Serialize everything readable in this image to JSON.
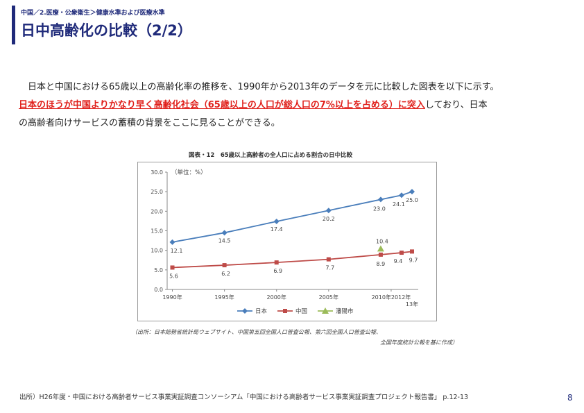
{
  "header": {
    "breadcrumb": "中国／2.医療・公衆衛生＞健康水準および医療水準",
    "title": "日中高齢化の比較（2/2）"
  },
  "body": {
    "line1": "日本と中国における65歳以上の高齢化率の推移を、1990年から2013年のデータを元に比較した図表を以下に示す。",
    "highlight": "日本のほうが中国よりかなり早く高齢化社会（65歳以上の人口が総人口の7%以上を占める）に突入",
    "line2_tail": "しており、日本",
    "line3": "の高齢者向けサービスの蓄積の背景をここに見ることができる。"
  },
  "chart_title": "図表・12　65歳以上高齢者の全人口に占める割合の日中比較",
  "chart_source": {
    "line1": "（出所：日本総務省統計局ウェブサイト、中国第五回全国人口普査公報、第六回全国人口普査公報、",
    "line2": "全国年度統計公報を基に作成）"
  },
  "chart_data": {
    "type": "line",
    "unit_label": "（単位：%）",
    "x": [
      1990,
      1995,
      2000,
      2005,
      2010,
      2012,
      2013
    ],
    "x_tick_labels": [
      {
        "x": 1990,
        "label": "1990年"
      },
      {
        "x": 1995,
        "label": "1995年"
      },
      {
        "x": 2000,
        "label": "2000年"
      },
      {
        "x": 2005,
        "label": "2005年"
      },
      {
        "x": 2011,
        "label": "2010年2012年"
      }
    ],
    "x_extra_label": "13年",
    "y_ticks": [
      0,
      5,
      10,
      15,
      20,
      25,
      30
    ],
    "y_tick_labels": [
      "0.0",
      "5.0",
      "10.0",
      "15.0",
      "20.0",
      "25.0",
      "30.0"
    ],
    "ylim": [
      0,
      30
    ],
    "xlim": [
      1989.5,
      2013.6
    ],
    "series": [
      {
        "name": "日本",
        "color": "#4a7ebb",
        "marker": "diamond",
        "points": [
          [
            1990,
            12.1
          ],
          [
            1995,
            14.5
          ],
          [
            2000,
            17.4
          ],
          [
            2005,
            20.2
          ],
          [
            2010,
            23.0
          ],
          [
            2012,
            24.1
          ],
          [
            2013,
            25.0
          ]
        ],
        "labels": [
          "12.1",
          "14.5",
          "17.4",
          "20.2",
          "23.0",
          "24.1",
          "25.0"
        ]
      },
      {
        "name": "中国",
        "color": "#be4b48",
        "marker": "square",
        "points": [
          [
            1990,
            5.6
          ],
          [
            1995,
            6.2
          ],
          [
            2000,
            6.9
          ],
          [
            2005,
            7.7
          ],
          [
            2010,
            8.9
          ],
          [
            2012,
            9.4
          ],
          [
            2013,
            9.7
          ]
        ],
        "labels": [
          "5.6",
          "6.2",
          "6.9",
          "7.7",
          "8.9",
          "9.4",
          "9.7"
        ]
      },
      {
        "name": "瀋陽市",
        "color": "#9bbb59",
        "marker": "triangle",
        "points": [
          [
            2010,
            10.4
          ]
        ],
        "labels": [
          "10.4"
        ]
      }
    ],
    "legend": "bottom",
    "grid": false
  },
  "footer": {
    "source": "出所）H26年度・中国における高齢者サービス事業実証調査コンソーシアム「中国における高齢者サービス事業実証調査プロジェクト報告書」 p.12-13",
    "page_number": "8"
  }
}
